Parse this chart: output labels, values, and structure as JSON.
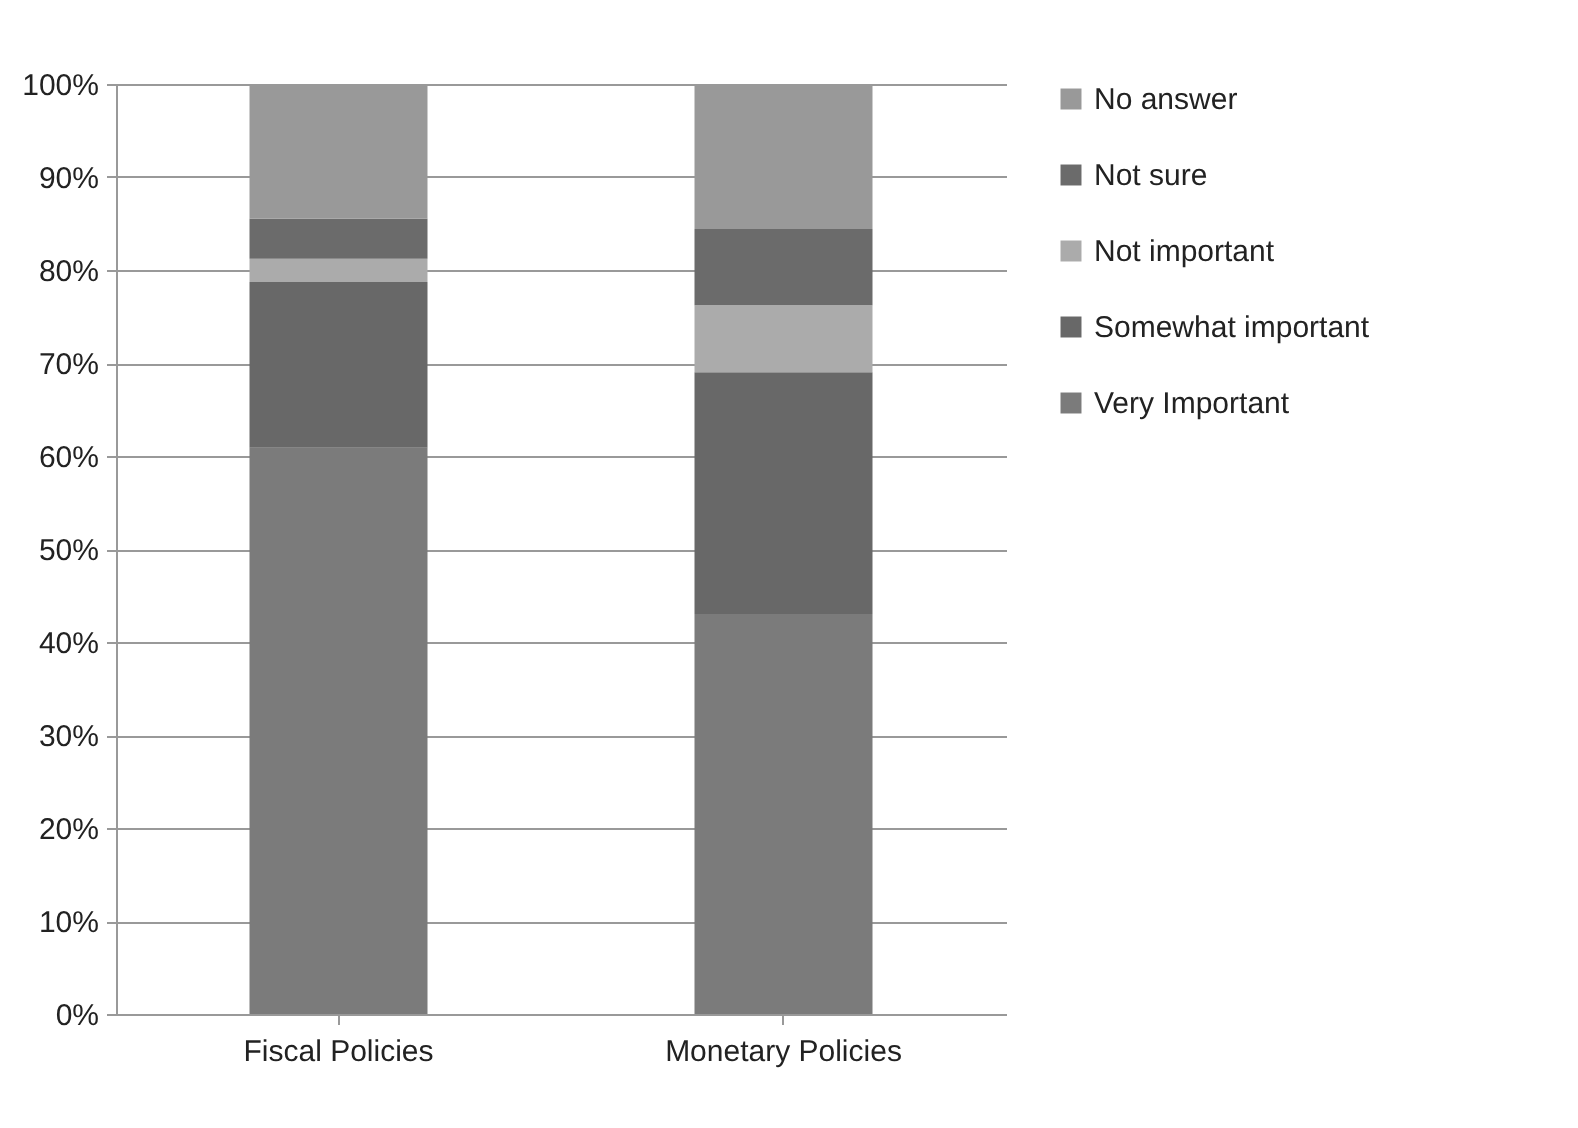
{
  "chart_data": {
    "type": "bar",
    "stacked": true,
    "categories": [
      "Fiscal Policies",
      "Monetary Policies"
    ],
    "series": [
      {
        "name": "Very Important",
        "color": "#7b7b7b",
        "values": [
          60.9,
          43.0
        ]
      },
      {
        "name": "Somewhat important",
        "color": "#686868",
        "values": [
          17.8,
          26.0
        ]
      },
      {
        "name": "Not important",
        "color": "#ababab",
        "values": [
          2.5,
          7.2
        ]
      },
      {
        "name": "Not sure",
        "color": "#6b6b6b",
        "values": [
          4.3,
          8.2
        ]
      },
      {
        "name": "No answer",
        "color": "#999999",
        "values": [
          14.5,
          15.6
        ]
      }
    ],
    "ylim": [
      0,
      100
    ],
    "yticks": [
      {
        "value": 0,
        "label": "0%"
      },
      {
        "value": 10,
        "label": "10%"
      },
      {
        "value": 20,
        "label": "20%"
      },
      {
        "value": 30,
        "label": "30%"
      },
      {
        "value": 40,
        "label": "40%"
      },
      {
        "value": 50,
        "label": "50%"
      },
      {
        "value": 60,
        "label": "60%"
      },
      {
        "value": 70,
        "label": "70%"
      },
      {
        "value": 80,
        "label": "80%"
      },
      {
        "value": 90,
        "label": "90%"
      },
      {
        "value": 100,
        "label": "100%"
      }
    ],
    "grid": "y",
    "legend": "right"
  }
}
